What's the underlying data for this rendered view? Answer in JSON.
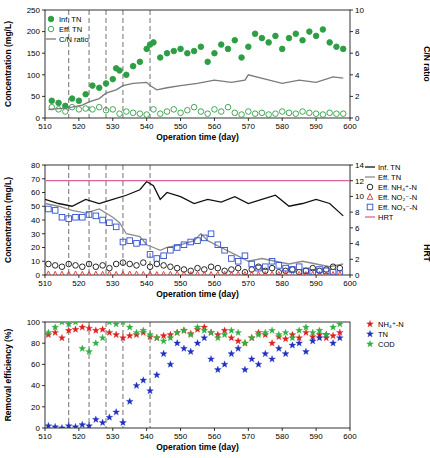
{
  "chart_data": [
    {
      "type": "scatter",
      "x_label": "Operation time (day)",
      "y_label": "Concentration (mg/L)",
      "y2_label": "C/N ratio",
      "xlim": [
        510,
        600
      ],
      "xticks": [
        510,
        520,
        530,
        540,
        550,
        560,
        570,
        580,
        590,
        600
      ],
      "ylim": [
        0,
        250
      ],
      "yticks": [
        0,
        50,
        100,
        150,
        200,
        250
      ],
      "y2lim": [
        0,
        10
      ],
      "y2ticks": [
        0,
        2,
        4,
        6,
        8,
        10
      ],
      "grid": false,
      "legend": "upper left",
      "phase_lines": [
        517,
        523,
        528,
        533,
        541
      ],
      "series": [
        {
          "name": "Inf. TN",
          "type": "scatter",
          "marker": "circle",
          "color": "#2e9e45",
          "x": [
            512,
            514,
            516,
            518,
            520,
            522,
            524,
            526,
            528,
            530,
            531,
            532,
            534,
            536,
            538,
            540,
            541,
            542,
            544,
            546,
            548,
            550,
            552,
            554,
            556,
            558,
            560,
            562,
            564,
            566,
            568,
            570,
            572,
            574,
            576,
            578,
            580,
            582,
            584,
            586,
            588,
            590,
            592,
            594,
            596,
            598
          ],
          "values": [
            40,
            35,
            28,
            45,
            40,
            55,
            75,
            70,
            80,
            90,
            115,
            110,
            100,
            120,
            130,
            160,
            170,
            175,
            140,
            150,
            155,
            160,
            150,
            155,
            165,
            130,
            150,
            170,
            160,
            180,
            140,
            165,
            195,
            185,
            175,
            190,
            160,
            185,
            195,
            180,
            200,
            190,
            205,
            175,
            165,
            160
          ]
        },
        {
          "name": "Eff. TN",
          "type": "scatter",
          "marker": "circle-open",
          "color": "#2e9e45",
          "x": [
            512,
            514,
            516,
            518,
            520,
            522,
            524,
            526,
            528,
            530,
            532,
            534,
            536,
            538,
            540,
            542,
            544,
            546,
            548,
            550,
            552,
            554,
            556,
            558,
            560,
            562,
            564,
            566,
            568,
            570,
            572,
            574,
            576,
            578,
            580,
            582,
            584,
            586,
            588,
            590,
            592,
            594,
            596,
            598
          ],
          "values": [
            25,
            20,
            15,
            25,
            20,
            22,
            20,
            25,
            18,
            20,
            10,
            15,
            12,
            10,
            8,
            20,
            10,
            15,
            20,
            12,
            18,
            25,
            15,
            10,
            20,
            15,
            25,
            12,
            8,
            15,
            10,
            12,
            8,
            10,
            15,
            12,
            10,
            15,
            12,
            10,
            8,
            12,
            10,
            10
          ]
        },
        {
          "name": "C/N ratio",
          "type": "line",
          "line_style": "solid",
          "color": "#7a7a7a",
          "axis": "y2",
          "x": [
            511,
            515,
            518,
            521,
            523,
            526,
            528,
            531,
            533,
            536,
            540,
            541,
            543,
            546,
            550,
            555,
            560,
            565,
            569,
            570,
            575,
            580,
            585,
            590,
            595,
            598
          ],
          "values": [
            0.8,
            0.9,
            1.0,
            1.2,
            1.5,
            1.8,
            2.3,
            2.6,
            3.0,
            3.2,
            3.3,
            3.0,
            2.6,
            2.8,
            3.0,
            3.2,
            3.5,
            3.3,
            3.5,
            4.0,
            3.6,
            3.2,
            3.5,
            3.3,
            3.8,
            3.7
          ]
        }
      ]
    },
    {
      "type": "scatter",
      "x_label": "Operation time (day)",
      "y_label": "Concentration (mg/L)",
      "y2_label": "HRT",
      "xlim": [
        510,
        600
      ],
      "xticks": [
        510,
        520,
        530,
        540,
        550,
        560,
        570,
        580,
        590,
        600
      ],
      "ylim": [
        0,
        80
      ],
      "yticks": [
        0,
        10,
        20,
        30,
        40,
        50,
        60,
        70,
        80
      ],
      "y2lim": [
        0,
        14
      ],
      "y2ticks": [
        0,
        2,
        4,
        6,
        8,
        10,
        12,
        14
      ],
      "grid": false,
      "legend": "right",
      "phase_lines": [
        517,
        523,
        528,
        533,
        541
      ],
      "series": [
        {
          "name": "Inf. TN",
          "type": "line",
          "line_style": "solid",
          "color": "#111111",
          "x": [
            510,
            514,
            518,
            522,
            526,
            530,
            534,
            538,
            540,
            542,
            544,
            546,
            550,
            554,
            558,
            562,
            566,
            570,
            574,
            578,
            582,
            586,
            590,
            594,
            598
          ],
          "values": [
            55,
            52,
            50,
            55,
            52,
            55,
            58,
            62,
            68,
            65,
            55,
            60,
            57,
            52,
            55,
            53,
            57,
            52,
            55,
            58,
            50,
            52,
            55,
            52,
            43
          ]
        },
        {
          "name": "Eff. TN",
          "type": "line",
          "line_style": "solid",
          "color": "#8c8c8c",
          "x": [
            510,
            514,
            518,
            522,
            526,
            530,
            532,
            534,
            538,
            540,
            542,
            544,
            546,
            550,
            554,
            556,
            558,
            562,
            566,
            570,
            574,
            578,
            582,
            586,
            590,
            594,
            598
          ],
          "values": [
            52,
            50,
            47,
            45,
            48,
            42,
            38,
            30,
            28,
            22,
            20,
            18,
            20,
            22,
            25,
            30,
            25,
            20,
            15,
            10,
            12,
            10,
            8,
            10,
            8,
            6,
            8
          ]
        },
        {
          "name": "Eff. NH₄⁺-N",
          "type": "scatter",
          "marker": "circle-open",
          "color": "#111111",
          "x": [
            511,
            513,
            515,
            517,
            519,
            521,
            523,
            525,
            527,
            529,
            531,
            533,
            535,
            537,
            539,
            541,
            543,
            545,
            547,
            549,
            551,
            553,
            555,
            557,
            559,
            561,
            563,
            565,
            567,
            569,
            571,
            573,
            575,
            577,
            579,
            581,
            583,
            585,
            587,
            589,
            591,
            593,
            595,
            597
          ],
          "values": [
            8,
            7,
            6,
            8,
            7,
            6,
            8,
            6,
            7,
            5,
            8,
            9,
            8,
            7,
            9,
            6,
            8,
            7,
            6,
            5,
            4,
            3,
            5,
            4,
            6,
            5,
            3,
            4,
            5,
            2,
            4,
            6,
            3,
            5,
            2,
            3,
            4,
            2,
            3,
            5,
            3,
            4,
            6,
            5
          ]
        },
        {
          "name": "Eff. NO₂⁻-N",
          "type": "scatter",
          "marker": "triangle-open",
          "color": "#e03030",
          "x": [
            511,
            513,
            515,
            517,
            519,
            521,
            523,
            525,
            527,
            529,
            531,
            533,
            535,
            537,
            539,
            541,
            543,
            545,
            547,
            549,
            551,
            553,
            555,
            557,
            559,
            561,
            563,
            565,
            567,
            569,
            571,
            573,
            575,
            577,
            579,
            581,
            583,
            585,
            587,
            589,
            591,
            593,
            595,
            597
          ],
          "values": [
            0.5,
            0.3,
            0.4,
            0.2,
            0.5,
            0.3,
            0.2,
            0.4,
            0.3,
            0.5,
            0.2,
            0.3,
            0.5,
            0.4,
            0.2,
            0.3,
            0.1,
            0.2,
            0.3,
            0.4,
            0.2,
            0.1,
            0.3,
            0.2,
            0.1,
            0.2,
            0.3,
            0.1,
            0.2,
            0.1,
            0.2,
            0.1,
            0.2,
            0.3,
            0.1,
            0.2,
            0.1,
            0.2,
            0.1,
            0.2,
            0.1,
            0.2,
            0.1,
            0.2
          ]
        },
        {
          "name": "Eff. NO₃⁻-N",
          "type": "scatter",
          "marker": "square-open",
          "color": "#2f4fd0",
          "x": [
            511,
            513,
            515,
            517,
            519,
            521,
            523,
            525,
            527,
            529,
            531,
            533,
            535,
            537,
            539,
            541,
            543,
            545,
            547,
            549,
            551,
            553,
            555,
            557,
            559,
            561,
            563,
            565,
            567,
            569,
            571,
            573,
            575,
            577,
            579,
            581,
            583,
            585,
            587,
            589,
            591,
            593,
            595,
            597
          ],
          "values": [
            48,
            47,
            42,
            41,
            42,
            42,
            44,
            43,
            40,
            38,
            35,
            24,
            25,
            23,
            24,
            15,
            12,
            14,
            18,
            20,
            22,
            24,
            25,
            27,
            30,
            22,
            18,
            12,
            10,
            14,
            8,
            5,
            6,
            10,
            7,
            5,
            4,
            6,
            3,
            2,
            4,
            3,
            2,
            1
          ]
        },
        {
          "name": "HRT",
          "type": "line",
          "line_style": "solid",
          "color": "#e0609a",
          "axis": "y2",
          "x": [
            510,
            600
          ],
          "values": [
            12,
            12
          ]
        }
      ]
    },
    {
      "type": "scatter",
      "x_label": "Operation time (day)",
      "y_label": "Removal efficiency (%)",
      "xlim": [
        510,
        600
      ],
      "xticks": [
        510,
        520,
        530,
        540,
        550,
        560,
        570,
        580,
        590,
        600
      ],
      "ylim": [
        0,
        100
      ],
      "yticks": [
        0,
        20,
        40,
        60,
        80,
        100
      ],
      "grid": false,
      "legend": "right",
      "phase_lines": [
        517,
        523,
        528,
        533,
        541
      ],
      "series": [
        {
          "name": "NH₄⁺-N",
          "type": "scatter",
          "marker": "star",
          "color": "#e02020",
          "x": [
            511,
            513,
            515,
            517,
            519,
            521,
            523,
            525,
            527,
            529,
            531,
            533,
            535,
            537,
            539,
            541,
            543,
            545,
            547,
            549,
            551,
            553,
            555,
            557,
            559,
            561,
            563,
            565,
            567,
            569,
            571,
            573,
            575,
            577,
            579,
            581,
            583,
            585,
            587,
            589,
            591,
            593,
            595,
            597
          ],
          "values": [
            88,
            90,
            85,
            92,
            93,
            95,
            94,
            92,
            93,
            90,
            88,
            85,
            87,
            88,
            90,
            86,
            85,
            87,
            88,
            90,
            92,
            89,
            93,
            95,
            90,
            88,
            92,
            85,
            82,
            80,
            85,
            90,
            88,
            80,
            86,
            84,
            88,
            85,
            90,
            86,
            88,
            85,
            87,
            90
          ]
        },
        {
          "name": "TN",
          "type": "scatter",
          "marker": "star",
          "color": "#2030c0",
          "x": [
            511,
            513,
            515,
            517,
            519,
            521,
            523,
            525,
            527,
            529,
            531,
            533,
            535,
            537,
            539,
            541,
            543,
            545,
            547,
            549,
            551,
            553,
            555,
            557,
            559,
            561,
            563,
            565,
            567,
            569,
            571,
            573,
            575,
            577,
            579,
            581,
            583,
            585,
            587,
            589,
            591,
            593,
            595,
            597
          ],
          "values": [
            2,
            1,
            0,
            2,
            1,
            3,
            2,
            8,
            5,
            10,
            15,
            5,
            25,
            40,
            45,
            35,
            50,
            70,
            60,
            80,
            75,
            72,
            80,
            85,
            65,
            55,
            60,
            70,
            75,
            55,
            65,
            60,
            70,
            65,
            75,
            70,
            78,
            80,
            72,
            82,
            85,
            88,
            80,
            85
          ]
        },
        {
          "name": "COD",
          "type": "scatter",
          "marker": "star",
          "color": "#30b040",
          "x": [
            511,
            513,
            515,
            517,
            519,
            521,
            523,
            525,
            527,
            529,
            531,
            533,
            535,
            537,
            539,
            541,
            543,
            545,
            547,
            549,
            551,
            553,
            555,
            557,
            559,
            561,
            563,
            565,
            567,
            569,
            571,
            573,
            575,
            577,
            579,
            581,
            583,
            585,
            587,
            589,
            591,
            593,
            595,
            597
          ],
          "values": [
            90,
            95,
            100,
            98,
            100,
            75,
            72,
            80,
            85,
            100,
            98,
            100,
            95,
            90,
            92,
            88,
            85,
            82,
            85,
            90,
            92,
            88,
            95,
            92,
            90,
            85,
            88,
            92,
            90,
            80,
            85,
            88,
            90,
            92,
            88,
            90,
            85,
            92,
            95,
            90,
            92,
            88,
            95,
            98
          ]
        }
      ]
    }
  ]
}
